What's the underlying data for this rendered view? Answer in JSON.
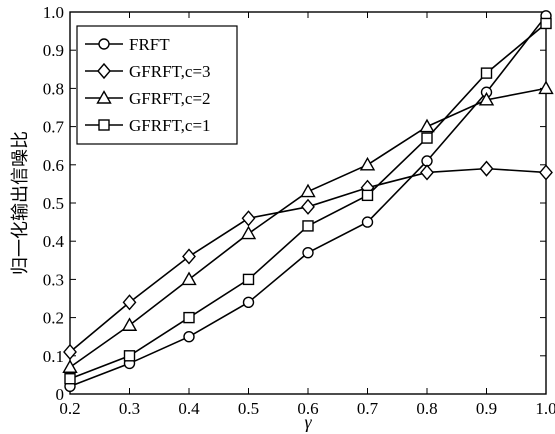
{
  "chart_data": {
    "type": "line",
    "title": "",
    "xlabel": "γ",
    "ylabel": "归一化输出信噪比",
    "x": [
      0.2,
      0.3,
      0.4,
      0.5,
      0.6,
      0.7,
      0.8,
      0.9,
      1.0
    ],
    "xticks": [
      "0.2",
      "0.3",
      "0.4",
      "0.5",
      "0.6",
      "0.7",
      "0.8",
      "0.9",
      "1.0"
    ],
    "yticks": [
      "0",
      "0.1",
      "0.2",
      "0.3",
      "0.4",
      "0.5",
      "0.6",
      "0.7",
      "0.8",
      "0.9",
      "1.0"
    ],
    "xlim": [
      0.2,
      1.0
    ],
    "ylim": [
      0,
      1.0
    ],
    "grid": false,
    "legend_position": "top-left",
    "series": [
      {
        "name": "FRFT",
        "marker": "circle",
        "values": [
          0.02,
          0.08,
          0.15,
          0.24,
          0.37,
          0.45,
          0.61,
          0.79,
          0.99
        ]
      },
      {
        "name": "GFRFT,c=3",
        "marker": "diamond",
        "values": [
          0.11,
          0.24,
          0.36,
          0.46,
          0.49,
          0.54,
          0.58,
          0.59,
          0.58
        ]
      },
      {
        "name": "GFRFT,c=2",
        "marker": "triangle",
        "values": [
          0.07,
          0.18,
          0.3,
          0.42,
          0.53,
          0.6,
          0.7,
          0.77,
          0.8
        ]
      },
      {
        "name": "GFRFT,c=1",
        "marker": "square",
        "values": [
          0.04,
          0.1,
          0.2,
          0.3,
          0.44,
          0.52,
          0.67,
          0.84,
          0.97
        ]
      }
    ]
  }
}
